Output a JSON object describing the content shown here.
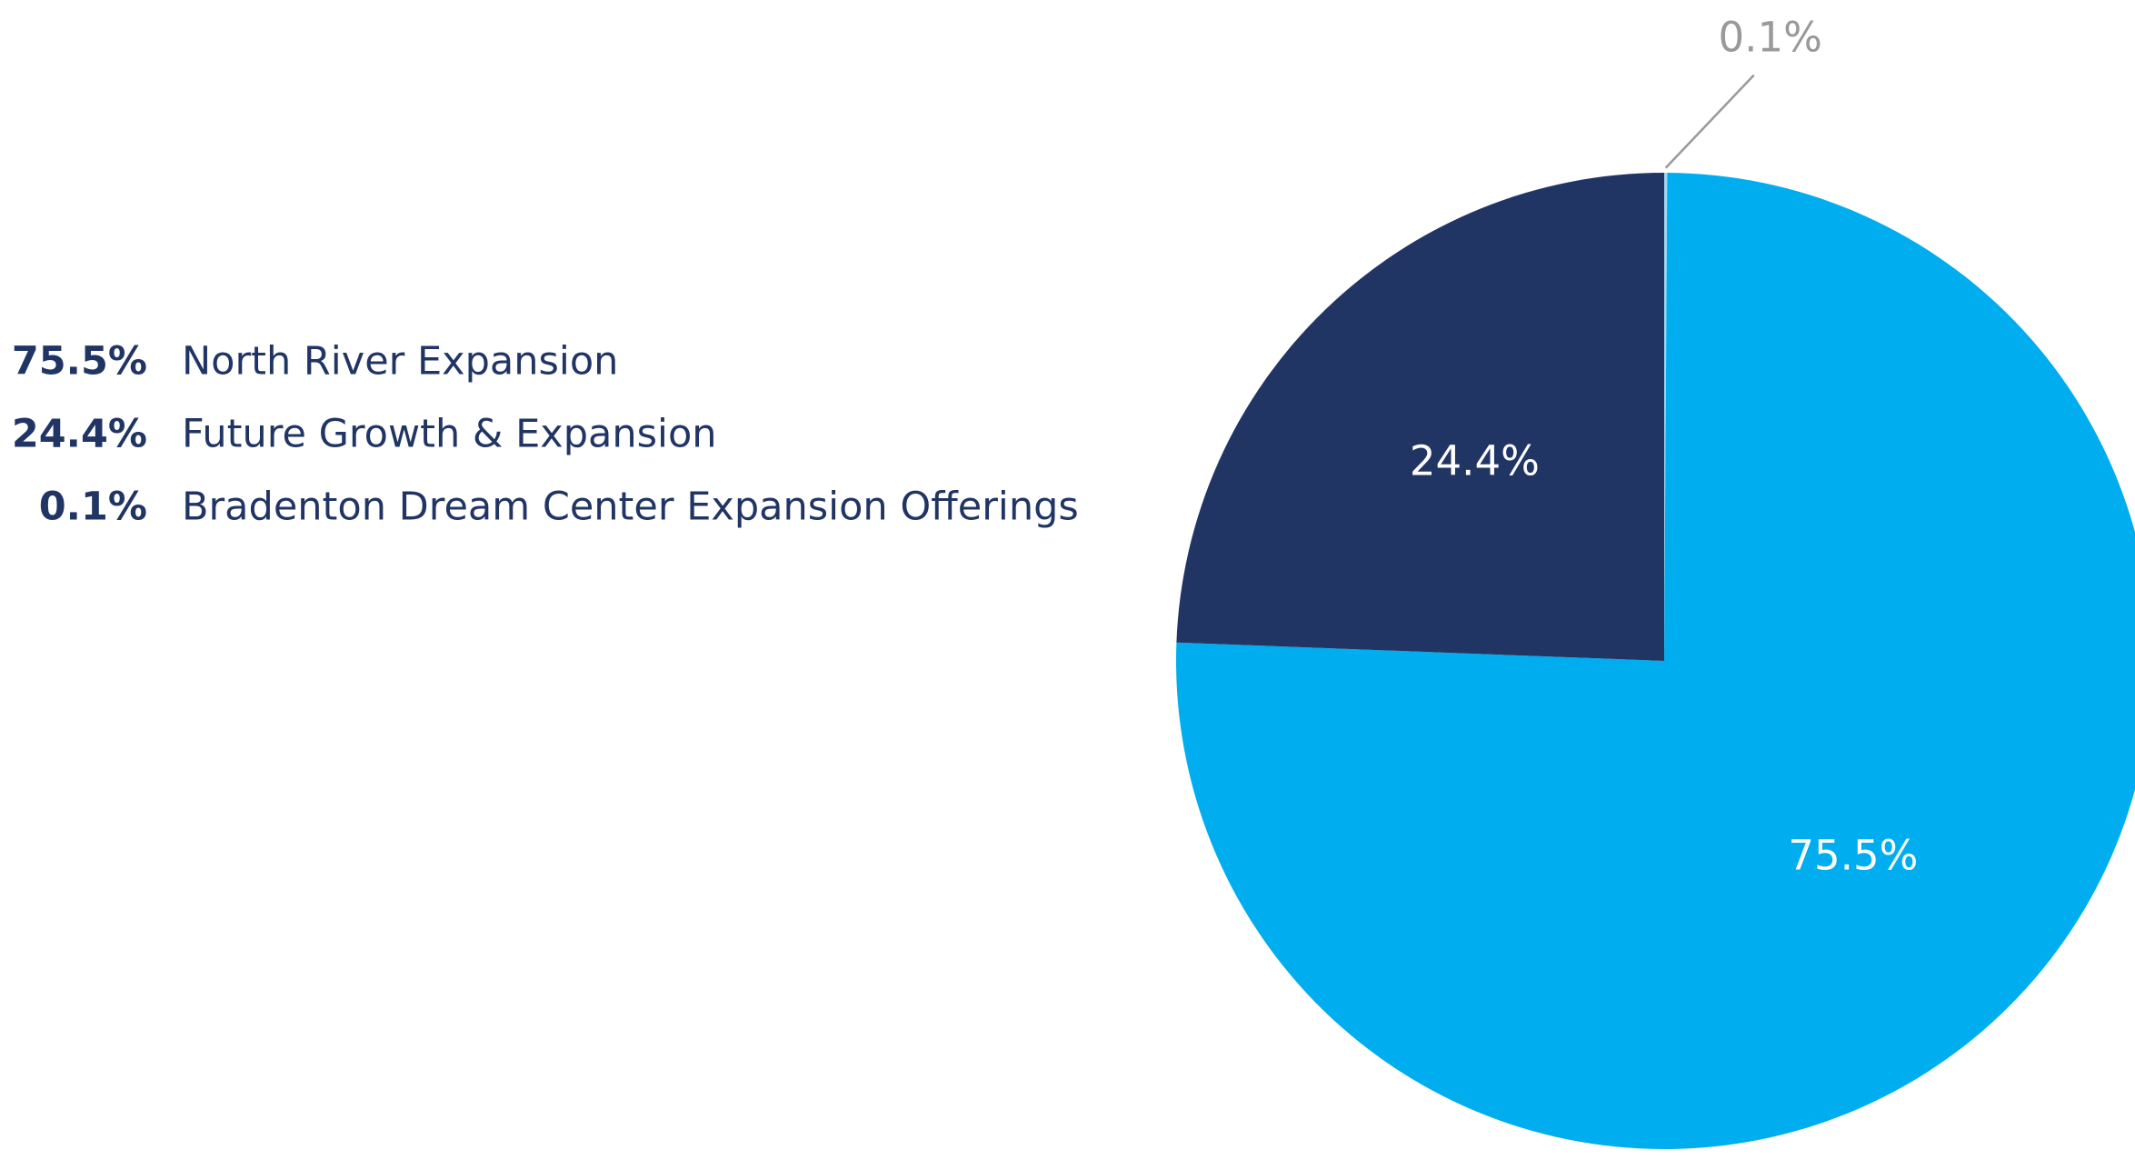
{
  "chart_data": {
    "type": "pie",
    "series": [
      {
        "name": "Bradenton Dream Center Expansion Offerings",
        "color": "#9fd8f2",
        "values": [
          0.1
        ],
        "value_labels": [
          "0.1%"
        ]
      },
      {
        "name": "North River Expansion",
        "color": "#00adee",
        "values": [
          75.5
        ],
        "value_labels": [
          "75.5%"
        ]
      },
      {
        "name": "Future Growth & Expansion",
        "color": "#213564",
        "values": [
          24.4
        ],
        "value_labels": [
          "24.4%"
        ]
      }
    ],
    "legend_order": [
      1,
      2,
      0
    ],
    "legend": "left"
  }
}
